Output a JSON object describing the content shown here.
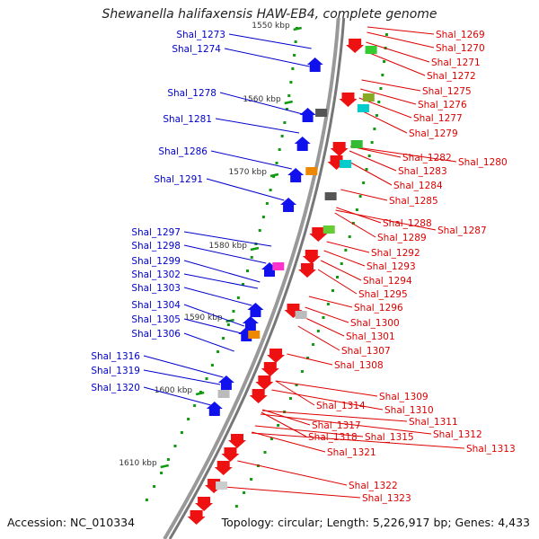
{
  "title": "Shewanella halifaxensis HAW-EB4, complete genome",
  "accession": "Accession: NC_010334",
  "topology": "Topology: circular; Length: 5,226,917 bp; Genes: 4,433",
  "colors": {
    "left_labels": "#0000cc",
    "right_labels": "#dd0000",
    "backbone": "#888888",
    "tick": "#119911"
  },
  "kbp_ticks": [
    "1550 kbp",
    "1560 kbp",
    "1570 kbp",
    "1580 kbp",
    "1590 kbp",
    "1600 kbp",
    "1610 kbp"
  ],
  "left_labels": [
    "Shal_1273",
    "Shal_1274",
    "Shal_1278",
    "Shal_1281",
    "Shal_1286",
    "Shal_1291",
    "Shal_1297",
    "Shal_1298",
    "Shal_1299",
    "Shal_1302",
    "Shal_1303",
    "Shal_1304",
    "Shal_1305",
    "Shal_1306",
    "Shal_1316",
    "Shal_1319",
    "Shal_1320"
  ],
  "right_labels": [
    "Shal_1269",
    "Shal_1270",
    "Shal_1271",
    "Shal_1272",
    "Shal_1275",
    "Shal_1276",
    "Shal_1277",
    "Shal_1279",
    "Shal_1282",
    "Shal_1280",
    "Shal_1283",
    "Shal_1284",
    "Shal_1285",
    "Shal_1288",
    "Shal_1287",
    "Shal_1289",
    "Shal_1292",
    "Shal_1293",
    "Shal_1294",
    "Shal_1295",
    "Shal_1296",
    "Shal_1300",
    "Shal_1301",
    "Shal_1307",
    "Shal_1308",
    "Shal_1309",
    "Shal_1310",
    "Shal_1314",
    "Shal_1311",
    "Shal_1317",
    "Shal_1312",
    "Shal_1318",
    "Shal_1315",
    "Shal_1313",
    "Shal_1321",
    "Shal_1322",
    "Shal_1323"
  ]
}
